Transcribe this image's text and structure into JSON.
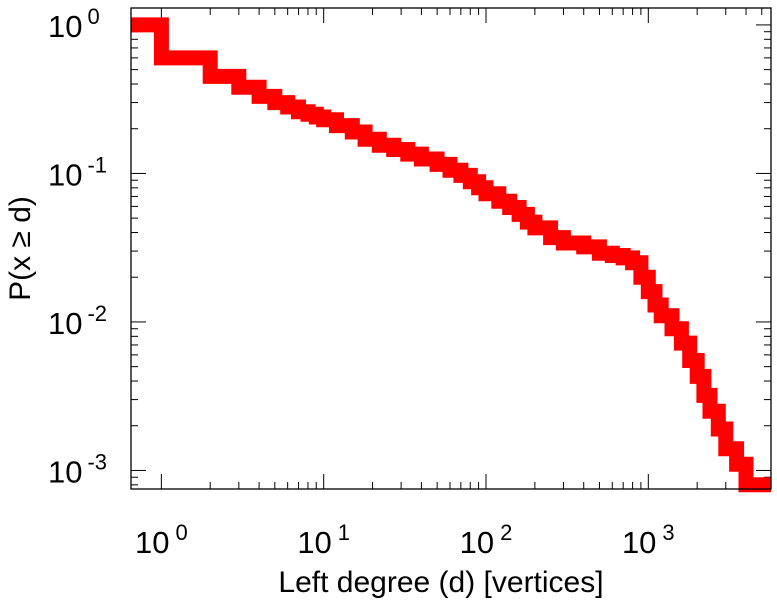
{
  "chart_data": {
    "type": "line",
    "step": true,
    "x_scale": "log",
    "y_scale": "log",
    "xlim": [
      0.65,
      5700
    ],
    "ylim": [
      0.00075,
      1.3
    ],
    "xlabel": "Left degree (d) [vertices]",
    "ylabel": "P(x ≥ d)",
    "grid": false,
    "x_ticks": [
      {
        "value": 1,
        "base": "10",
        "exp": "0"
      },
      {
        "value": 10,
        "base": "10",
        "exp": "1"
      },
      {
        "value": 100,
        "base": "10",
        "exp": "2"
      },
      {
        "value": 1000,
        "base": "10",
        "exp": "3"
      }
    ],
    "y_ticks": [
      {
        "value": 1,
        "base": "10",
        "exp": "0"
      },
      {
        "value": 0.1,
        "base": "10",
        "exp": "-1"
      },
      {
        "value": 0.01,
        "base": "10",
        "exp": "-2"
      },
      {
        "value": 0.001,
        "base": "10",
        "exp": "-3"
      }
    ],
    "series": [
      {
        "color": "#ff0000",
        "x": [
          0.65,
          1,
          2,
          3,
          4,
          5,
          6,
          7,
          8,
          9,
          10,
          12,
          15,
          18,
          22,
          27,
          33,
          40,
          50,
          60,
          70,
          80,
          90,
          100,
          120,
          140,
          160,
          180,
          200,
          250,
          300,
          400,
          500,
          600,
          700,
          800,
          900,
          1000,
          1100,
          1200,
          1400,
          1600,
          1800,
          2000,
          2200,
          2400,
          2700,
          3000,
          3500,
          4000,
          4500,
          5000,
          5700
        ],
        "y": [
          1.0,
          0.6,
          0.45,
          0.38,
          0.33,
          0.3,
          0.28,
          0.26,
          0.25,
          0.24,
          0.23,
          0.21,
          0.19,
          0.17,
          0.155,
          0.145,
          0.135,
          0.125,
          0.115,
          0.105,
          0.097,
          0.088,
          0.08,
          0.073,
          0.065,
          0.059,
          0.053,
          0.047,
          0.043,
          0.037,
          0.034,
          0.032,
          0.029,
          0.028,
          0.027,
          0.025,
          0.02,
          0.016,
          0.013,
          0.011,
          0.009,
          0.0072,
          0.0055,
          0.0043,
          0.0032,
          0.0025,
          0.0019,
          0.0014,
          0.0011,
          0.0008,
          0.0008,
          0.0008,
          0.0008
        ]
      }
    ]
  }
}
